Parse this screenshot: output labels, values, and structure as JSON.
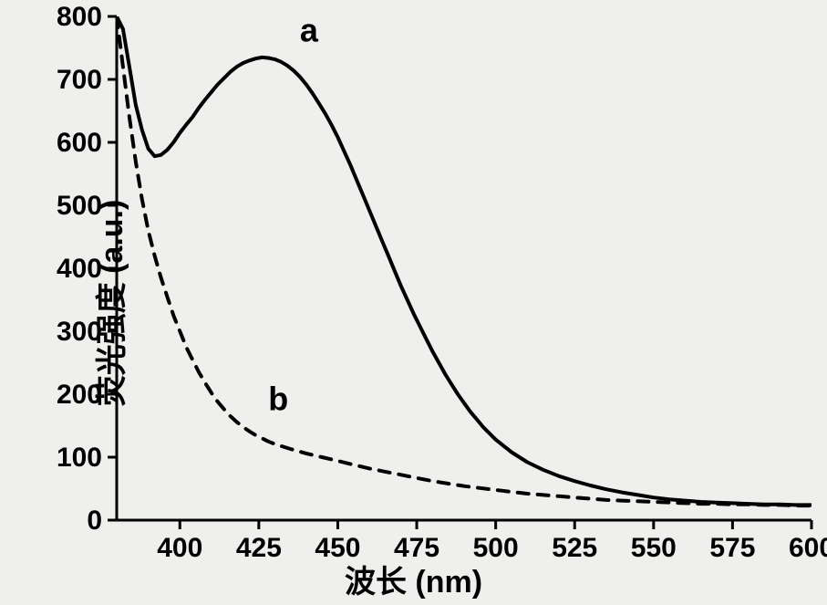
{
  "chart": {
    "type": "line",
    "background_color": "#efefed",
    "plot_background": "#efefed",
    "axis_color": "#000000",
    "axis_width": 3,
    "tick_length": 10,
    "tick_width": 3,
    "tick_fontsize": 30,
    "tick_fontweight": 700,
    "label_fontsize": 34,
    "label_fontweight": 700,
    "text_color": "#000000",
    "xlabel": "波长 (nm)",
    "ylabel": "荧光强度 (a.u.)",
    "xlim": [
      380,
      600
    ],
    "ylim": [
      0,
      800
    ],
    "xticks": [
      400,
      425,
      450,
      475,
      500,
      525,
      550,
      575,
      600
    ],
    "yticks": [
      0,
      100,
      200,
      300,
      400,
      500,
      600,
      700,
      800
    ],
    "grid": false,
    "series": [
      {
        "name": "a",
        "label": "a",
        "label_pos": {
          "x": 438,
          "y": 760
        },
        "label_fontsize": 36,
        "color": "#000000",
        "line_width": 4,
        "dash": "none",
        "points": [
          [
            380,
            800
          ],
          [
            382,
            780
          ],
          [
            384,
            720
          ],
          [
            386,
            660
          ],
          [
            388,
            620
          ],
          [
            390,
            590
          ],
          [
            392,
            578
          ],
          [
            394,
            580
          ],
          [
            396,
            588
          ],
          [
            398,
            600
          ],
          [
            400,
            615
          ],
          [
            402,
            628
          ],
          [
            404,
            640
          ],
          [
            406,
            655
          ],
          [
            408,
            668
          ],
          [
            410,
            680
          ],
          [
            412,
            692
          ],
          [
            414,
            702
          ],
          [
            416,
            712
          ],
          [
            418,
            720
          ],
          [
            420,
            726
          ],
          [
            422,
            730
          ],
          [
            424,
            733
          ],
          [
            426,
            735
          ],
          [
            428,
            734
          ],
          [
            430,
            732
          ],
          [
            432,
            728
          ],
          [
            434,
            722
          ],
          [
            436,
            714
          ],
          [
            438,
            704
          ],
          [
            440,
            692
          ],
          [
            442,
            678
          ],
          [
            444,
            662
          ],
          [
            446,
            646
          ],
          [
            448,
            628
          ],
          [
            450,
            608
          ],
          [
            452,
            586
          ],
          [
            454,
            564
          ],
          [
            456,
            540
          ],
          [
            458,
            516
          ],
          [
            460,
            492
          ],
          [
            462,
            468
          ],
          [
            464,
            444
          ],
          [
            466,
            420
          ],
          [
            468,
            396
          ],
          [
            470,
            372
          ],
          [
            472,
            350
          ],
          [
            474,
            328
          ],
          [
            476,
            308
          ],
          [
            478,
            288
          ],
          [
            480,
            268
          ],
          [
            482,
            250
          ],
          [
            484,
            232
          ],
          [
            486,
            216
          ],
          [
            488,
            200
          ],
          [
            490,
            186
          ],
          [
            492,
            172
          ],
          [
            494,
            160
          ],
          [
            496,
            148
          ],
          [
            498,
            138
          ],
          [
            500,
            128
          ],
          [
            505,
            108
          ],
          [
            510,
            92
          ],
          [
            515,
            80
          ],
          [
            520,
            70
          ],
          [
            525,
            62
          ],
          [
            530,
            55
          ],
          [
            535,
            49
          ],
          [
            540,
            44
          ],
          [
            545,
            40
          ],
          [
            550,
            36
          ],
          [
            555,
            33
          ],
          [
            560,
            31
          ],
          [
            565,
            29
          ],
          [
            570,
            28
          ],
          [
            575,
            27
          ],
          [
            580,
            26
          ],
          [
            585,
            25
          ],
          [
            590,
            25
          ],
          [
            595,
            24
          ],
          [
            600,
            24
          ]
        ]
      },
      {
        "name": "b",
        "label": "b",
        "label_pos": {
          "x": 428,
          "y": 175
        },
        "label_fontsize": 36,
        "color": "#000000",
        "line_width": 4,
        "dash": "12,10",
        "points": [
          [
            380,
            800
          ],
          [
            382,
            720
          ],
          [
            384,
            640
          ],
          [
            386,
            570
          ],
          [
            388,
            510
          ],
          [
            390,
            460
          ],
          [
            392,
            420
          ],
          [
            394,
            385
          ],
          [
            396,
            355
          ],
          [
            398,
            325
          ],
          [
            400,
            300
          ],
          [
            402,
            275
          ],
          [
            404,
            255
          ],
          [
            406,
            235
          ],
          [
            408,
            218
          ],
          [
            410,
            202
          ],
          [
            412,
            188
          ],
          [
            414,
            176
          ],
          [
            416,
            165
          ],
          [
            418,
            156
          ],
          [
            420,
            148
          ],
          [
            422,
            141
          ],
          [
            424,
            135
          ],
          [
            426,
            130
          ],
          [
            428,
            125
          ],
          [
            430,
            121
          ],
          [
            435,
            113
          ],
          [
            440,
            106
          ],
          [
            445,
            100
          ],
          [
            450,
            94
          ],
          [
            455,
            88
          ],
          [
            460,
            82
          ],
          [
            465,
            77
          ],
          [
            470,
            72
          ],
          [
            475,
            67
          ],
          [
            480,
            62
          ],
          [
            485,
            58
          ],
          [
            490,
            54
          ],
          [
            495,
            51
          ],
          [
            500,
            48
          ],
          [
            505,
            45
          ],
          [
            510,
            42
          ],
          [
            515,
            40
          ],
          [
            520,
            38
          ],
          [
            525,
            36
          ],
          [
            530,
            34
          ],
          [
            535,
            32
          ],
          [
            540,
            31
          ],
          [
            545,
            30
          ],
          [
            550,
            29
          ],
          [
            555,
            28
          ],
          [
            560,
            27
          ],
          [
            565,
            26
          ],
          [
            570,
            26
          ],
          [
            575,
            25
          ],
          [
            580,
            25
          ],
          [
            585,
            24
          ],
          [
            590,
            24
          ],
          [
            595,
            23
          ],
          [
            600,
            23
          ]
        ]
      }
    ]
  }
}
